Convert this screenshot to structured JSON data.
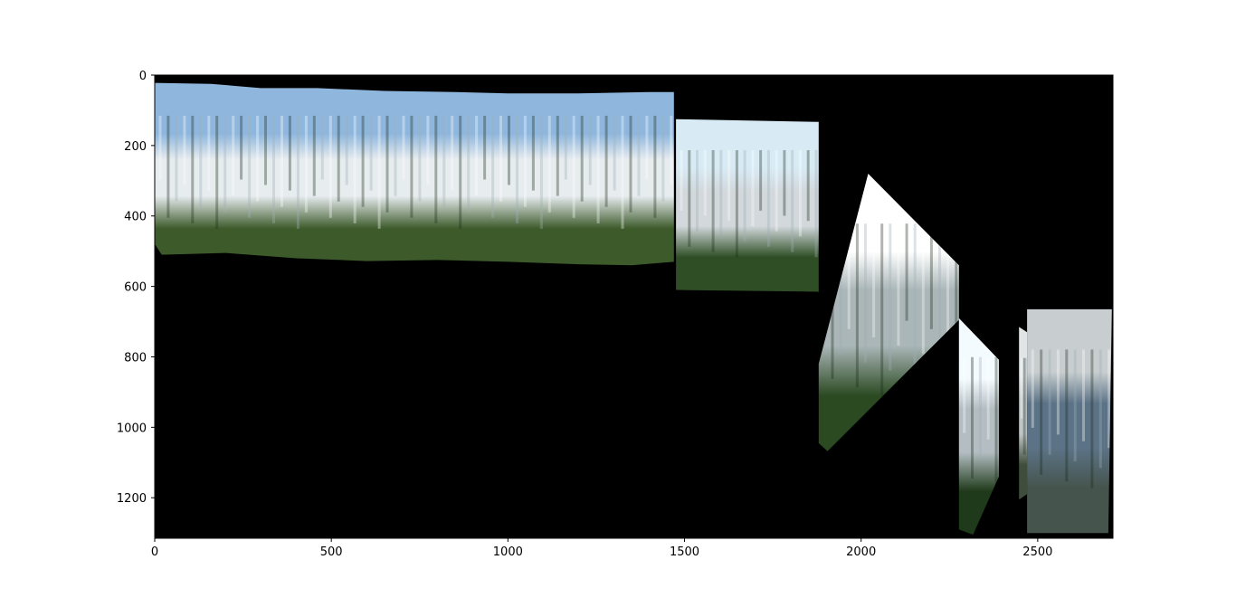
{
  "chart_data": {
    "type": "image",
    "xlim": [
      0,
      2713
    ],
    "ylim": [
      1315,
      0
    ],
    "x_ticks": [
      0,
      500,
      1000,
      1500,
      2000,
      2500
    ],
    "x_tick_labels": [
      "0",
      "500",
      "1000",
      "1500",
      "2000",
      "2500"
    ],
    "y_ticks": [
      0,
      200,
      400,
      600,
      800,
      1000,
      1200
    ],
    "y_tick_labels": [
      "0",
      "200",
      "400",
      "600",
      "800",
      "1000",
      "1200"
    ],
    "background": "#000000",
    "tiles": [
      {
        "name": "panorama-main",
        "polygon": [
          [
            0,
            22
          ],
          [
            160,
            25
          ],
          [
            300,
            37
          ],
          [
            460,
            37
          ],
          [
            650,
            45
          ],
          [
            850,
            48
          ],
          [
            1000,
            52
          ],
          [
            1200,
            52
          ],
          [
            1400,
            48
          ],
          [
            1470,
            48
          ],
          [
            1470,
            530
          ],
          [
            1350,
            540
          ],
          [
            1200,
            537
          ],
          [
            1000,
            530
          ],
          [
            800,
            525
          ],
          [
            600,
            528
          ],
          [
            400,
            520
          ],
          [
            200,
            505
          ],
          [
            20,
            510
          ],
          [
            0,
            480
          ]
        ],
        "colors": {
          "sky": "#8fb7de",
          "falls": "#e7ecef",
          "vegetation": "#3c5a2a"
        }
      },
      {
        "name": "panorama-tile-2",
        "polygon": [
          [
            1476,
            125
          ],
          [
            1880,
            133
          ],
          [
            1880,
            615
          ],
          [
            1476,
            610
          ]
        ],
        "colors": {
          "sky": "#d8ebf5",
          "falls": "#d2d8dc",
          "vegetation": "#2f4e25"
        }
      },
      {
        "name": "panorama-tile-3",
        "polygon": [
          [
            2020,
            280
          ],
          [
            2277,
            540
          ],
          [
            2277,
            695
          ],
          [
            1905,
            1068
          ],
          [
            1880,
            1045
          ],
          [
            1880,
            820
          ]
        ],
        "colors": {
          "sky": "#ffffff",
          "falls": "#aab6b8",
          "vegetation": "#2b4a22"
        }
      },
      {
        "name": "panorama-tile-4",
        "polygon": [
          [
            2277,
            690
          ],
          [
            2390,
            808
          ],
          [
            2390,
            1140
          ],
          [
            2317,
            1305
          ],
          [
            2277,
            1290
          ]
        ],
        "colors": {
          "sky": "#f4fbff",
          "falls": "#b3bdc2",
          "vegetation": "#1f3a1a"
        }
      },
      {
        "name": "panorama-tile-5",
        "polygon": [
          [
            2447,
            715
          ],
          [
            2470,
            730
          ],
          [
            2470,
            1190
          ],
          [
            2447,
            1205
          ]
        ],
        "colors": {
          "sky": "#e1e5e6",
          "falls": "#c0c6c8",
          "vegetation": "#3f4d3c"
        }
      },
      {
        "name": "panorama-tile-6",
        "polygon": [
          [
            2470,
            665
          ],
          [
            2710,
            665
          ],
          [
            2700,
            1300
          ],
          [
            2470,
            1300
          ]
        ],
        "colors": {
          "sky": "#c8ced0",
          "falls": "#5c7387",
          "vegetation": "#45544c"
        }
      }
    ]
  }
}
